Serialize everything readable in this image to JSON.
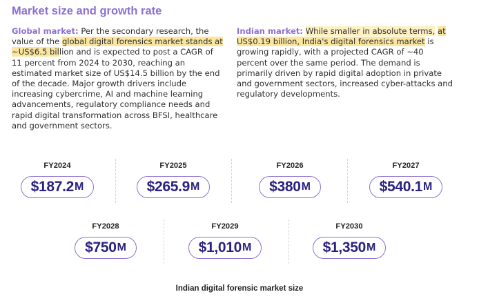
{
  "heading": "Market size and growth rate",
  "global": {
    "lead": "Global market:",
    "text_before": " Per the secondary research, the value of the ",
    "highlight": "global digital forensics market stands at ~US$6.5 bil",
    "text_after": "lion and is expected to post a CAGR of 11 percent from 2024 to 2030, reaching an estimated market size of US$14.5 billion by the end of the decade. Major growth drivers include increasing cybercrime, AI and machine learning advancements, regulatory compliance needs and rapid digital transformation across BFSI, healthcare and government sectors."
  },
  "india": {
    "lead": "Indian market:",
    "highlight_a": "While smaller in absolute terms,",
    "highlight_b": "at US$0.19 billion, India's digital forensics market",
    "text_after": " is growing rapidly, with a projected CAGR of ~40 percent over the same period. The demand is primarily driven by rapid digital adoption in private and government sectors, increased cyber-attacks and regulatory developments."
  },
  "market_sizes": [
    {
      "year": "FY2024",
      "value": "$187.2",
      "unit": "M"
    },
    {
      "year": "FY2025",
      "value": "$265.9",
      "unit": "M"
    },
    {
      "year": "FY2026",
      "value": "$380",
      "unit": "M"
    },
    {
      "year": "FY2027",
      "value": "$540.1",
      "unit": "M"
    },
    {
      "year": "FY2028",
      "value": "$750",
      "unit": "M"
    },
    {
      "year": "FY2029",
      "value": "$1,010",
      "unit": "M"
    },
    {
      "year": "FY2030",
      "value": "$1,350",
      "unit": "M"
    }
  ],
  "caption": "Indian digital forensic market size",
  "colors": {
    "accent": "#8e6fd1",
    "value_text": "#2a2280",
    "highlight": "#fbe6a0"
  }
}
